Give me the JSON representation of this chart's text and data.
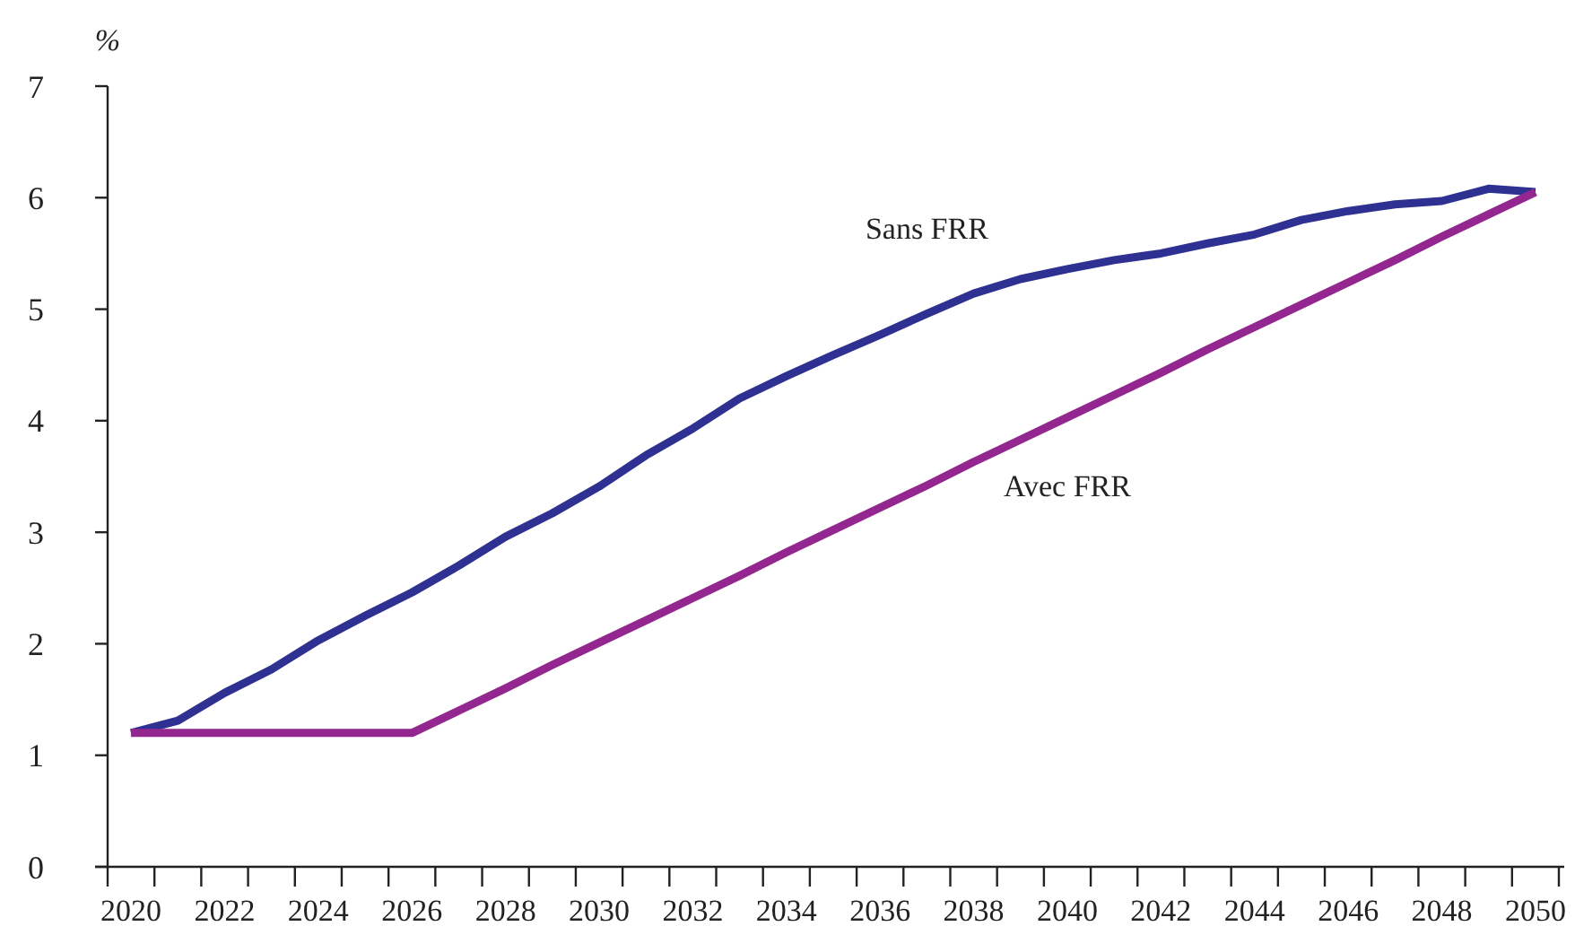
{
  "chart_data": {
    "type": "line",
    "ylabel": "%",
    "categories": [
      "2020",
      null,
      "2022",
      null,
      "2024",
      null,
      "2026",
      null,
      "2028",
      null,
      "2030",
      null,
      "2032",
      null,
      "2034",
      null,
      "2036",
      null,
      "2038",
      null,
      "2040",
      null,
      "2042",
      null,
      "2044",
      null,
      "2046",
      null,
      "2048",
      null,
      "2050"
    ],
    "series": [
      {
        "name": "Sans FRR",
        "color": "#2e3192",
        "values": [
          1.2,
          1.31,
          1.56,
          1.77,
          2.03,
          2.25,
          2.46,
          2.7,
          2.96,
          3.17,
          3.41,
          3.69,
          3.93,
          4.2,
          4.4,
          4.59,
          4.77,
          4.96,
          5.14,
          5.27,
          5.36,
          5.44,
          5.5,
          5.59,
          5.67,
          5.8,
          5.88,
          5.94,
          5.97,
          6.08,
          6.05
        ]
      },
      {
        "name": "Avec FRR",
        "color": "#93278f",
        "values": [
          1.2,
          1.2,
          1.2,
          1.2,
          1.2,
          1.2,
          1.2,
          1.4,
          1.6,
          1.81,
          2.01,
          2.21,
          2.41,
          2.61,
          2.82,
          3.02,
          3.22,
          3.42,
          3.63,
          3.83,
          4.03,
          4.23,
          4.43,
          4.64,
          4.84,
          5.04,
          5.24,
          5.44,
          5.65,
          5.85,
          6.05
        ]
      }
    ],
    "ylim": [
      0,
      7
    ],
    "yticks": [
      0,
      1,
      2,
      3,
      4,
      5,
      6,
      7
    ],
    "grid": false,
    "marker": "none",
    "line_style": "solid"
  }
}
